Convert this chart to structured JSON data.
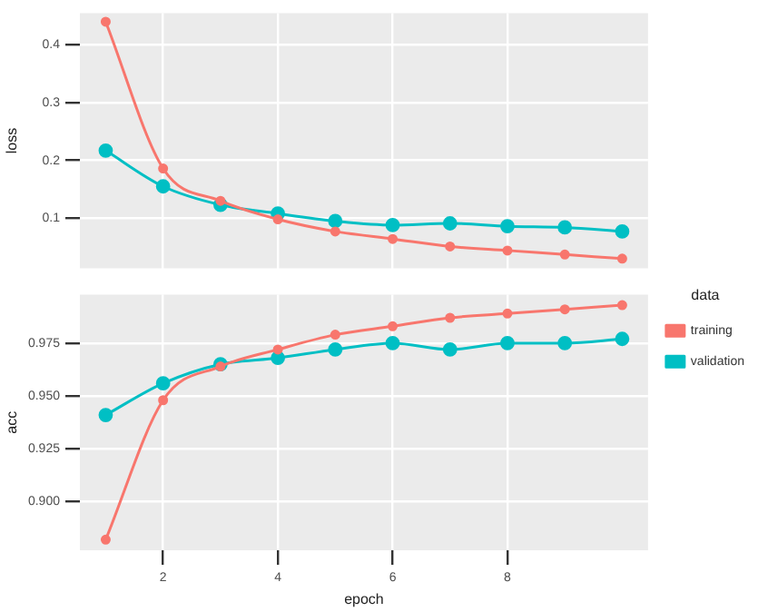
{
  "chart_data": [
    {
      "type": "line",
      "ylabel": "loss",
      "x": [
        1,
        2,
        3,
        4,
        5,
        6,
        7,
        8,
        9,
        10
      ],
      "xlim": [
        0.55,
        10.45
      ],
      "xticks": [
        2,
        4,
        6,
        8
      ],
      "ylim": [
        0.013,
        0.455
      ],
      "yticks": [
        0.1,
        0.2,
        0.3,
        0.4
      ],
      "tick_labels": "y",
      "grid": true,
      "marker": "circle",
      "line_style": "solid",
      "series": [
        {
          "color": "#f8766d",
          "values": [
            0.44,
            0.186,
            0.13,
            0.098,
            0.077,
            0.064,
            0.051,
            0.044,
            0.037,
            0.03
          ]
        },
        {
          "color": "#00bfc4",
          "values": [
            0.217,
            0.155,
            0.123,
            0.108,
            0.095,
            0.088,
            0.091,
            0.086,
            0.084,
            0.077
          ]
        }
      ]
    },
    {
      "type": "line",
      "xlabel": "epoch",
      "ylabel": "acc",
      "legend_title": "data",
      "legend": "right",
      "x": [
        1,
        2,
        3,
        4,
        5,
        6,
        7,
        8,
        9,
        10
      ],
      "xlim": [
        0.55,
        10.45
      ],
      "xticks": [
        2,
        4,
        6,
        8
      ],
      "ylim": [
        0.877,
        0.998
      ],
      "yticks": [
        {
          "value": 0.9,
          "label": "0.900"
        },
        {
          "value": 0.925,
          "label": "0.925"
        },
        {
          "value": 0.95,
          "label": "0.950"
        },
        {
          "value": 0.975,
          "label": "0.975"
        }
      ],
      "grid": true,
      "marker": "circle",
      "line_style": "solid",
      "series": [
        {
          "name": "training",
          "color": "#f8766d",
          "values": [
            0.882,
            0.948,
            0.964,
            0.972,
            0.979,
            0.983,
            0.987,
            0.989,
            0.991,
            0.993
          ]
        },
        {
          "name": "validation",
          "color": "#00bfc4",
          "values": [
            0.941,
            0.956,
            0.965,
            0.968,
            0.972,
            0.975,
            0.972,
            0.975,
            0.975,
            0.977
          ]
        }
      ]
    }
  ]
}
